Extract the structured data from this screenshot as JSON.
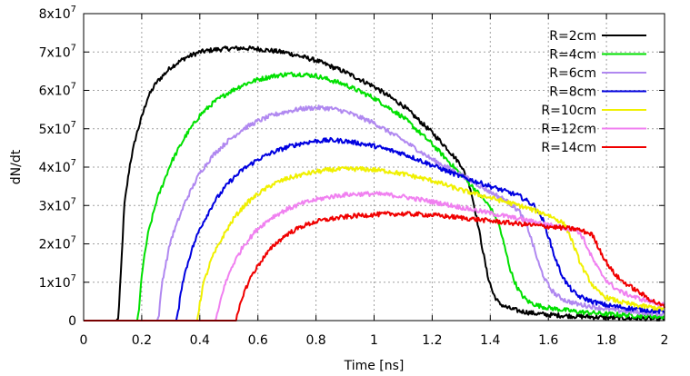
{
  "chart_data": {
    "type": "line",
    "xlabel": "Time [ns]",
    "ylabel": "dN/dt",
    "xlim": [
      0,
      2
    ],
    "ylim": [
      0,
      80000000
    ],
    "grid": true,
    "legend_position": "top-right",
    "x_ticks": [
      0,
      0.2,
      0.4,
      0.6,
      0.8,
      1,
      1.2,
      1.4,
      1.6,
      1.8,
      2
    ],
    "x_tick_labels": [
      "0",
      "0.2",
      "0.4",
      "0.6",
      "0.8",
      "1",
      "1.2",
      "1.4",
      "1.6",
      "1.8",
      "2"
    ],
    "y_ticks": [
      0,
      10000000,
      20000000,
      30000000,
      40000000,
      50000000,
      60000000,
      70000000,
      80000000
    ],
    "y_tick_labels": [
      {
        "mantissa": "0",
        "exponent": ""
      },
      {
        "mantissa": "1x10",
        "exponent": "7"
      },
      {
        "mantissa": "2x10",
        "exponent": "7"
      },
      {
        "mantissa": "3x10",
        "exponent": "7"
      },
      {
        "mantissa": "4x10",
        "exponent": "7"
      },
      {
        "mantissa": "5x10",
        "exponent": "7"
      },
      {
        "mantissa": "6x10",
        "exponent": "7"
      },
      {
        "mantissa": "7x10",
        "exponent": "7"
      },
      {
        "mantissa": "8x10",
        "exponent": "7"
      }
    ],
    "series": [
      {
        "name": "R=2cm",
        "color": "#000000",
        "x": [
          0,
          0.115,
          0.12,
          0.13,
          0.14,
          0.16,
          0.18,
          0.2,
          0.22,
          0.25,
          0.3,
          0.35,
          0.4,
          0.45,
          0.5,
          0.55,
          0.6,
          0.7,
          0.8,
          0.9,
          1.0,
          1.1,
          1.2,
          1.25,
          1.3,
          1.33,
          1.35,
          1.37,
          1.39,
          1.41,
          1.43,
          1.46,
          1.5,
          1.55,
          1.6,
          1.7,
          1.8,
          1.9,
          2.0
        ],
        "y": [
          0,
          0,
          1000000,
          15000000,
          30000000,
          41000000,
          48000000,
          53000000,
          58000000,
          62000000,
          66000000,
          68500000,
          70000000,
          70600000,
          70900000,
          71000000,
          70800000,
          69800000,
          67800000,
          64800000,
          61000000,
          56000000,
          49000000,
          45000000,
          40500000,
          35000000,
          28000000,
          20000000,
          12000000,
          7000000,
          4500000,
          3300000,
          2500000,
          1900000,
          1500000,
          1100000,
          800000,
          600000,
          400000
        ]
      },
      {
        "name": "R=4cm",
        "color": "#00e000",
        "x": [
          0,
          0.185,
          0.19,
          0.2,
          0.22,
          0.25,
          0.3,
          0.35,
          0.4,
          0.45,
          0.5,
          0.55,
          0.6,
          0.65,
          0.7,
          0.75,
          0.8,
          0.9,
          1.0,
          1.1,
          1.2,
          1.25,
          1.3,
          1.35,
          1.4,
          1.43,
          1.45,
          1.47,
          1.49,
          1.51,
          1.53,
          1.56,
          1.6,
          1.7,
          1.8,
          1.9,
          2.0
        ],
        "y": [
          0,
          0,
          2000000,
          12000000,
          22000000,
          31000000,
          41000000,
          48000000,
          53500000,
          57000000,
          59500000,
          61500000,
          62800000,
          63700000,
          64200000,
          64200000,
          63800000,
          61500000,
          58000000,
          53000000,
          46000000,
          42000000,
          38000000,
          34000000,
          29500000,
          25000000,
          19000000,
          13000000,
          9000000,
          6500000,
          5000000,
          4000000,
          3300000,
          2300000,
          1700000,
          1300000,
          1000000
        ]
      },
      {
        "name": "R=6cm",
        "color": "#b088f0",
        "x": [
          0,
          0.255,
          0.26,
          0.27,
          0.3,
          0.35,
          0.4,
          0.45,
          0.5,
          0.55,
          0.6,
          0.65,
          0.7,
          0.75,
          0.8,
          0.85,
          0.9,
          1.0,
          1.1,
          1.2,
          1.3,
          1.4,
          1.45,
          1.5,
          1.53,
          1.55,
          1.57,
          1.59,
          1.61,
          1.63,
          1.66,
          1.7,
          1.8,
          1.9,
          2.0
        ],
        "y": [
          0,
          0,
          2000000,
          10000000,
          21000000,
          31000000,
          38500000,
          43500000,
          47000000,
          50000000,
          52000000,
          53500000,
          54500000,
          55200000,
          55500000,
          55300000,
          54500000,
          51500000,
          47000000,
          42000000,
          38000000,
          33500000,
          31500000,
          28500000,
          24000000,
          19000000,
          14000000,
          10500000,
          8000000,
          6500000,
          5200000,
          4300000,
          3000000,
          2200000,
          1700000
        ]
      },
      {
        "name": "R=8cm",
        "color": "#0000e0",
        "x": [
          0,
          0.32,
          0.325,
          0.34,
          0.37,
          0.4,
          0.45,
          0.5,
          0.55,
          0.6,
          0.65,
          0.7,
          0.75,
          0.8,
          0.85,
          0.9,
          0.95,
          1.0,
          1.1,
          1.2,
          1.3,
          1.4,
          1.5,
          1.55,
          1.58,
          1.6,
          1.62,
          1.64,
          1.66,
          1.68,
          1.7,
          1.75,
          1.8,
          1.9,
          2.0
        ],
        "y": [
          0,
          0,
          2000000,
          10000000,
          18000000,
          24000000,
          31000000,
          36000000,
          39500000,
          42000000,
          43800000,
          45200000,
          46200000,
          46800000,
          47000000,
          46800000,
          46200000,
          45500000,
          43500000,
          40500000,
          37500000,
          35000000,
          32500000,
          30000000,
          26500000,
          22000000,
          17000000,
          13000000,
          10000000,
          8000000,
          6500000,
          5000000,
          4000000,
          3000000,
          2300000
        ]
      },
      {
        "name": "R=10cm",
        "color": "#f0f000",
        "x": [
          0,
          0.39,
          0.395,
          0.41,
          0.44,
          0.48,
          0.52,
          0.56,
          0.6,
          0.65,
          0.7,
          0.75,
          0.8,
          0.85,
          0.9,
          0.95,
          1.0,
          1.05,
          1.1,
          1.2,
          1.3,
          1.4,
          1.5,
          1.6,
          1.65,
          1.67,
          1.69,
          1.71,
          1.73,
          1.75,
          1.77,
          1.8,
          1.85,
          1.9,
          2.0
        ],
        "y": [
          0,
          0,
          2000000,
          9000000,
          16000000,
          22000000,
          27000000,
          30500000,
          33000000,
          35500000,
          37000000,
          38000000,
          38800000,
          39300000,
          39500000,
          39500000,
          39300000,
          38900000,
          38200000,
          36500000,
          34000000,
          32000000,
          30000000,
          27500000,
          25500000,
          23000000,
          19000000,
          15000000,
          12000000,
          9500000,
          7500000,
          6000000,
          4800000,
          4000000,
          3000000
        ]
      },
      {
        "name": "R=12cm",
        "color": "#f080f0",
        "x": [
          0,
          0.455,
          0.46,
          0.48,
          0.51,
          0.55,
          0.6,
          0.65,
          0.7,
          0.75,
          0.8,
          0.85,
          0.9,
          0.95,
          1.0,
          1.05,
          1.1,
          1.2,
          1.3,
          1.4,
          1.5,
          1.6,
          1.7,
          1.72,
          1.74,
          1.76,
          1.78,
          1.8,
          1.82,
          1.85,
          1.9,
          1.95,
          2.0
        ],
        "y": [
          0,
          0,
          1500000,
          8000000,
          14000000,
          19500000,
          24000000,
          27000000,
          29000000,
          30500000,
          31500000,
          32300000,
          32800000,
          33000000,
          33000000,
          32800000,
          32300000,
          31000000,
          29500000,
          28000000,
          26500000,
          25000000,
          23500000,
          21500000,
          18000000,
          15000000,
          12500000,
          10500000,
          9000000,
          7500000,
          6000000,
          5000000,
          4000000
        ]
      },
      {
        "name": "R=14cm",
        "color": "#f00000",
        "x": [
          0,
          0.525,
          0.53,
          0.55,
          0.58,
          0.62,
          0.66,
          0.7,
          0.75,
          0.8,
          0.85,
          0.9,
          0.95,
          1.0,
          1.05,
          1.1,
          1.15,
          1.2,
          1.3,
          1.4,
          1.5,
          1.6,
          1.7,
          1.75,
          1.77,
          1.79,
          1.81,
          1.83,
          1.85,
          1.88,
          1.91,
          1.94,
          1.97,
          2.0
        ],
        "y": [
          0,
          0,
          1500000,
          7000000,
          12000000,
          16500000,
          20000000,
          22500000,
          24500000,
          25800000,
          26500000,
          27000000,
          27400000,
          27600000,
          27800000,
          27800000,
          27700000,
          27500000,
          26800000,
          26000000,
          25200000,
          24500000,
          23800000,
          22500000,
          19500000,
          16500000,
          14000000,
          12000000,
          10500000,
          9000000,
          7500000,
          6000000,
          4700000,
          3600000
        ]
      }
    ]
  }
}
